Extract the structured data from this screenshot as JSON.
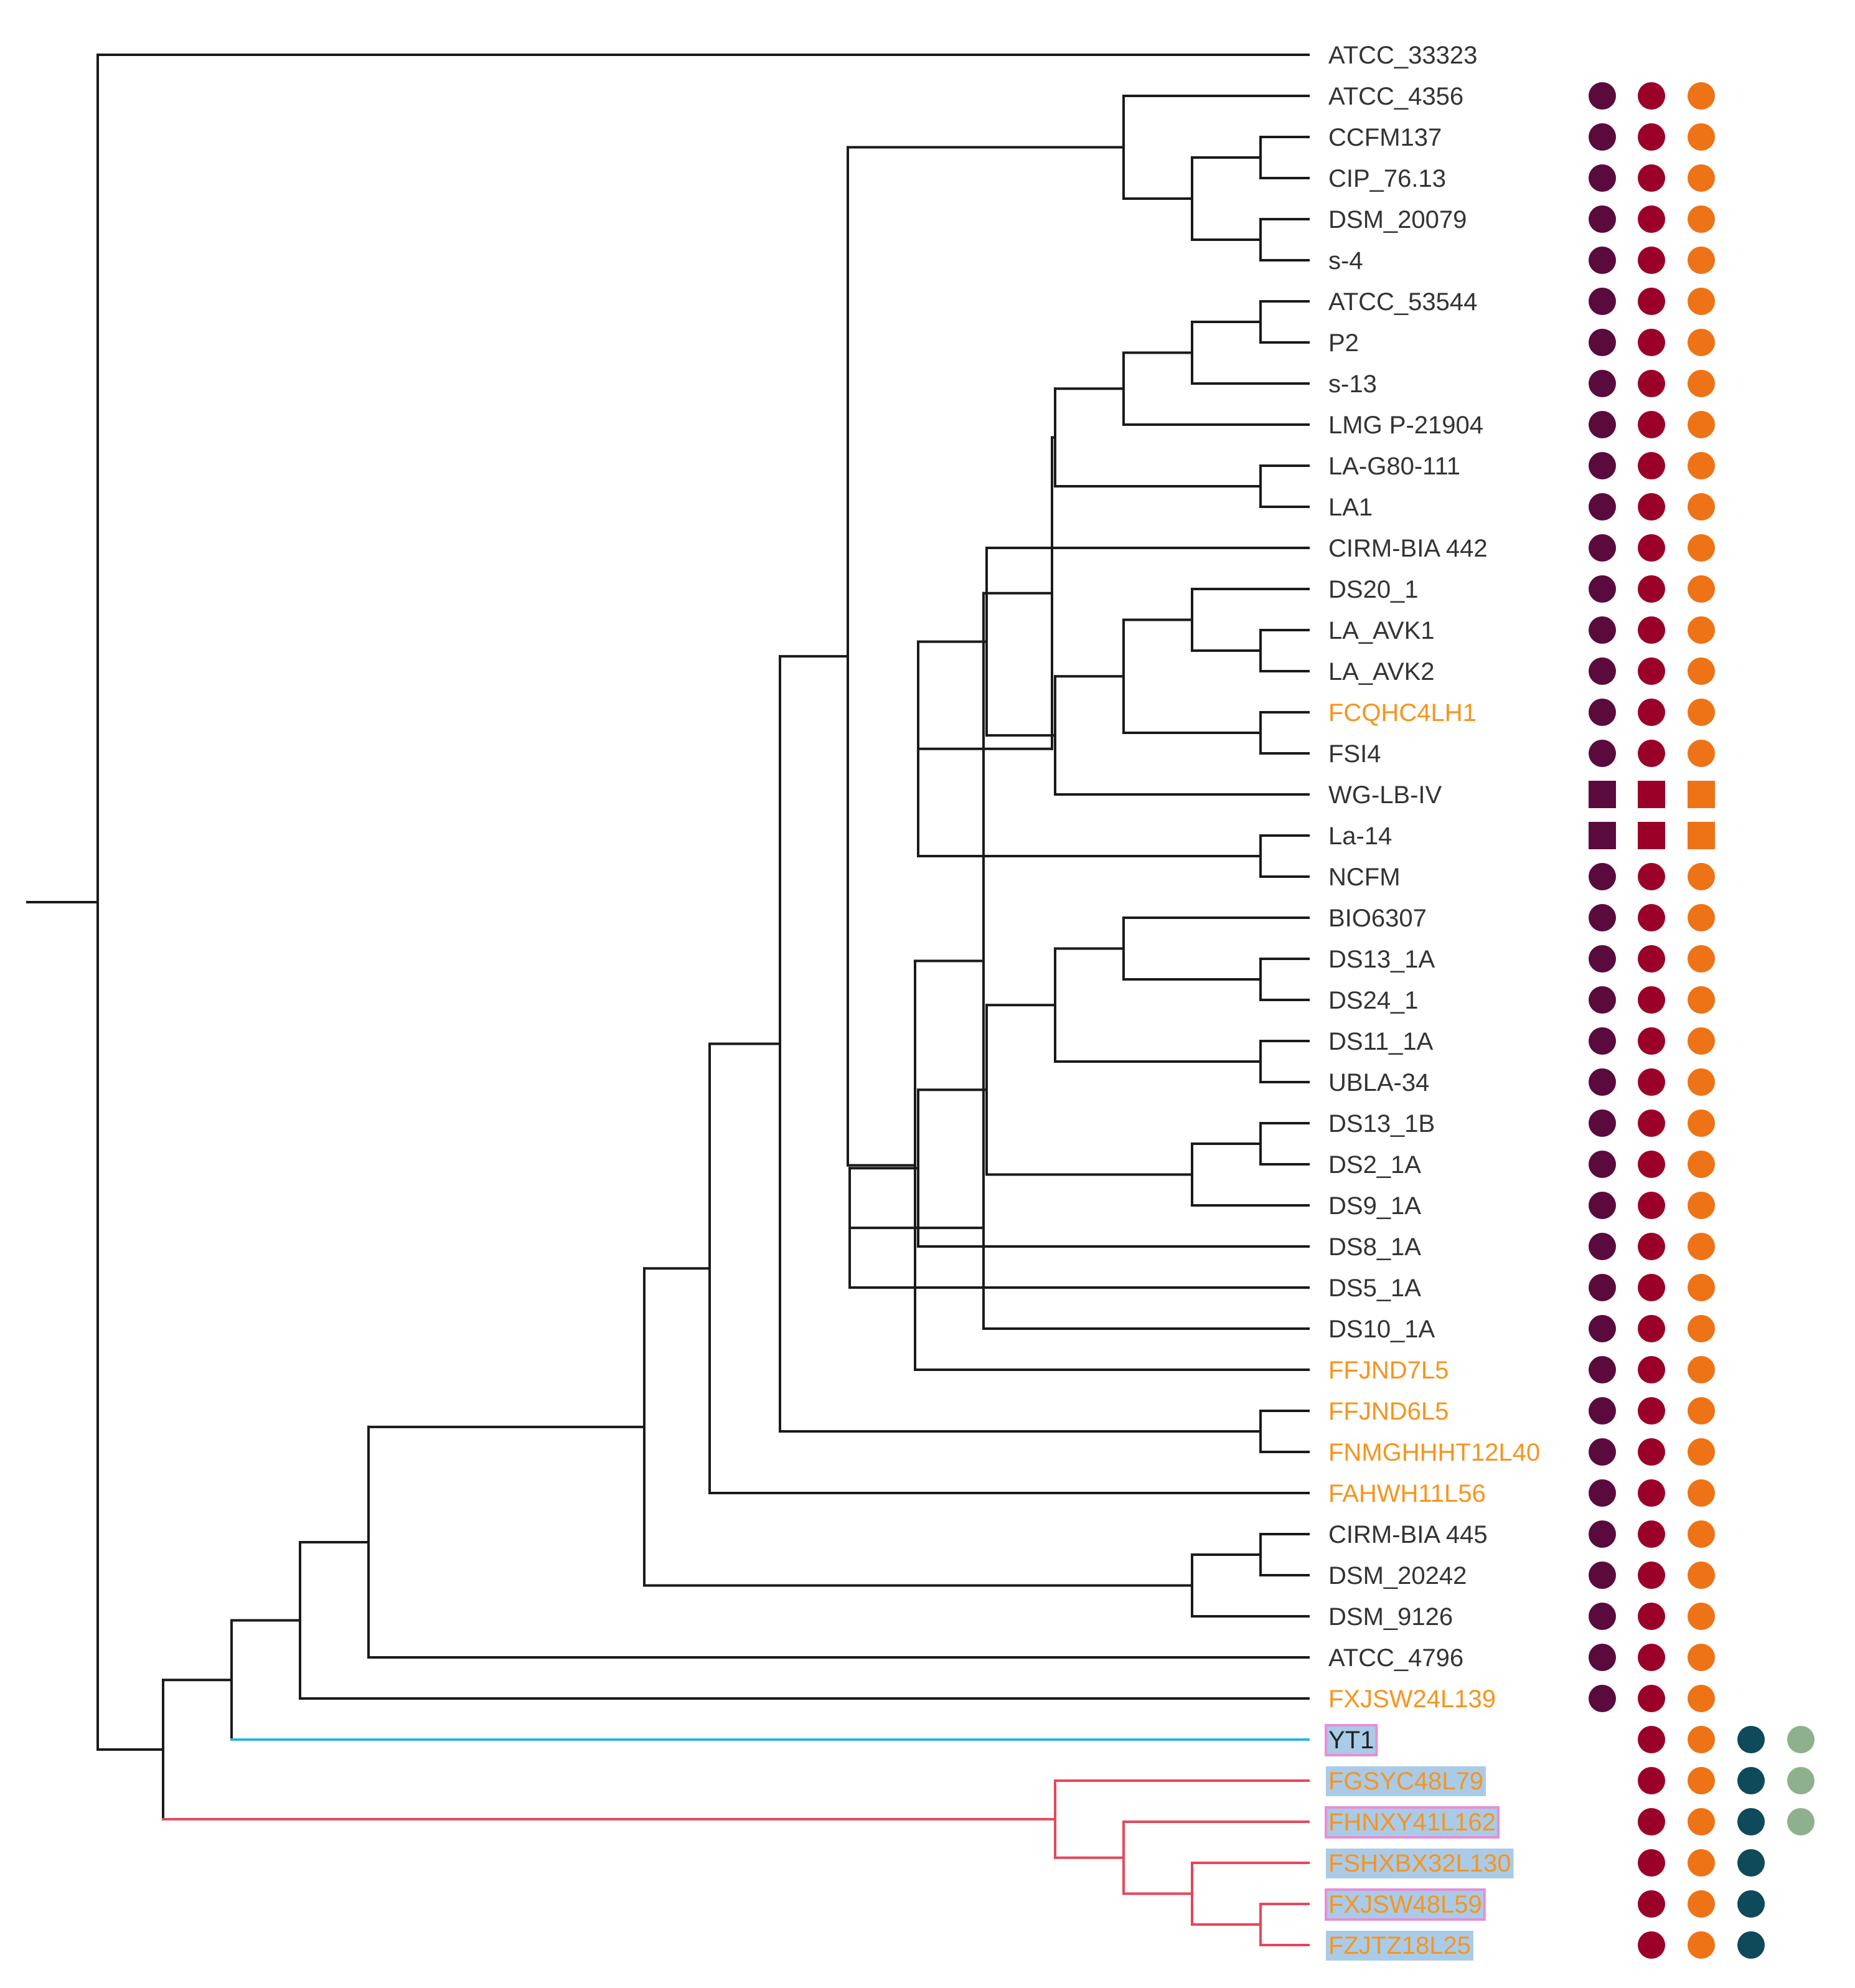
{
  "tree": {
    "colors": {
      "branch": "#1a1a1a",
      "branch_highlight_blue": "#2ab4e2",
      "branch_highlight_red": "#e8455a",
      "label_default": "#333333",
      "label_orange": "#f7941d",
      "label_box_fill": "#a9cbe8",
      "label_box_outline": "#e58fd6",
      "col1": "#5b0a3d",
      "col2": "#9b0029",
      "col3": "#ee7316",
      "col4": "#0e4a59",
      "col5": "#8fb08c"
    },
    "leaves": [
      {
        "label": "ATCC_33323",
        "style": "default",
        "markers": []
      },
      {
        "label": "ATCC_4356",
        "style": "default",
        "markers": [
          "col1:circle",
          "col2:circle",
          "col3:circle"
        ]
      },
      {
        "label": "CCFM137",
        "style": "default",
        "markers": [
          "col1:circle",
          "col2:circle",
          "col3:circle"
        ]
      },
      {
        "label": "CIP_76.13",
        "style": "default",
        "markers": [
          "col1:circle",
          "col2:circle",
          "col3:circle"
        ]
      },
      {
        "label": "DSM_20079",
        "style": "default",
        "markers": [
          "col1:circle",
          "col2:circle",
          "col3:circle"
        ]
      },
      {
        "label": "s-4",
        "style": "default",
        "markers": [
          "col1:circle",
          "col2:circle",
          "col3:circle"
        ]
      },
      {
        "label": "ATCC_53544",
        "style": "default",
        "markers": [
          "col1:circle",
          "col2:circle",
          "col3:circle"
        ]
      },
      {
        "label": "P2",
        "style": "default",
        "markers": [
          "col1:circle",
          "col2:circle",
          "col3:circle"
        ]
      },
      {
        "label": "s-13",
        "style": "default",
        "markers": [
          "col1:circle",
          "col2:circle",
          "col3:circle"
        ]
      },
      {
        "label": "LMG P-21904",
        "style": "default",
        "markers": [
          "col1:circle",
          "col2:circle",
          "col3:circle"
        ]
      },
      {
        "label": "LA-G80-111",
        "style": "default",
        "markers": [
          "col1:circle",
          "col2:circle",
          "col3:circle"
        ]
      },
      {
        "label": "LA1",
        "style": "default",
        "markers": [
          "col1:circle",
          "col2:circle",
          "col3:circle"
        ]
      },
      {
        "label": "CIRM-BIA 442",
        "style": "default",
        "markers": [
          "col1:circle",
          "col2:circle",
          "col3:circle"
        ]
      },
      {
        "label": "DS20_1",
        "style": "default",
        "markers": [
          "col1:circle",
          "col2:circle",
          "col3:circle"
        ]
      },
      {
        "label": "LA_AVK1",
        "style": "default",
        "markers": [
          "col1:circle",
          "col2:circle",
          "col3:circle"
        ]
      },
      {
        "label": "LA_AVK2",
        "style": "default",
        "markers": [
          "col1:circle",
          "col2:circle",
          "col3:circle"
        ]
      },
      {
        "label": "FCQHC4LH1",
        "style": "orange",
        "markers": [
          "col1:circle",
          "col2:circle",
          "col3:circle"
        ]
      },
      {
        "label": "FSI4",
        "style": "default",
        "markers": [
          "col1:circle",
          "col2:circle",
          "col3:circle"
        ]
      },
      {
        "label": "WG-LB-IV",
        "style": "default",
        "markers": [
          "col1:square",
          "col2:square",
          "col3:square"
        ]
      },
      {
        "label": "La-14",
        "style": "default",
        "markers": [
          "col1:square",
          "col2:square",
          "col3:square"
        ]
      },
      {
        "label": "NCFM",
        "style": "default",
        "markers": [
          "col1:circle",
          "col2:circle",
          "col3:circle"
        ]
      },
      {
        "label": "BIO6307",
        "style": "default",
        "markers": [
          "col1:circle",
          "col2:circle",
          "col3:circle"
        ]
      },
      {
        "label": "DS13_1A",
        "style": "default",
        "markers": [
          "col1:circle",
          "col2:circle",
          "col3:circle"
        ]
      },
      {
        "label": "DS24_1",
        "style": "default",
        "markers": [
          "col1:circle",
          "col2:circle",
          "col3:circle"
        ]
      },
      {
        "label": "DS11_1A",
        "style": "default",
        "markers": [
          "col1:circle",
          "col2:circle",
          "col3:circle"
        ]
      },
      {
        "label": "UBLA-34",
        "style": "default",
        "markers": [
          "col1:circle",
          "col2:circle",
          "col3:circle"
        ]
      },
      {
        "label": "DS13_1B",
        "style": "default",
        "markers": [
          "col1:circle",
          "col2:circle",
          "col3:circle"
        ]
      },
      {
        "label": "DS2_1A",
        "style": "default",
        "markers": [
          "col1:circle",
          "col2:circle",
          "col3:circle"
        ]
      },
      {
        "label": "DS9_1A",
        "style": "default",
        "markers": [
          "col1:circle",
          "col2:circle",
          "col3:circle"
        ]
      },
      {
        "label": "DS8_1A",
        "style": "default",
        "markers": [
          "col1:circle",
          "col2:circle",
          "col3:circle"
        ]
      },
      {
        "label": "DS5_1A",
        "style": "default",
        "markers": [
          "col1:circle",
          "col2:circle",
          "col3:circle"
        ]
      },
      {
        "label": "DS10_1A",
        "style": "default",
        "markers": [
          "col1:circle",
          "col2:circle",
          "col3:circle"
        ]
      },
      {
        "label": "FFJND7L5",
        "style": "orange",
        "markers": [
          "col1:circle",
          "col2:circle",
          "col3:circle"
        ]
      },
      {
        "label": "FFJND6L5",
        "style": "orange",
        "markers": [
          "col1:circle",
          "col2:circle",
          "col3:circle"
        ]
      },
      {
        "label": "FNMGHHHT12L40",
        "style": "orange",
        "markers": [
          "col1:circle",
          "col2:circle",
          "col3:circle"
        ]
      },
      {
        "label": "FAHWH11L56",
        "style": "orange",
        "markers": [
          "col1:circle",
          "col2:circle",
          "col3:circle"
        ]
      },
      {
        "label": "CIRM-BIA 445",
        "style": "default",
        "markers": [
          "col1:circle",
          "col2:circle",
          "col3:circle"
        ]
      },
      {
        "label": "DSM_20242",
        "style": "default",
        "markers": [
          "col1:circle",
          "col2:circle",
          "col3:circle"
        ]
      },
      {
        "label": "DSM_9126",
        "style": "default",
        "markers": [
          "col1:circle",
          "col2:circle",
          "col3:circle"
        ]
      },
      {
        "label": "ATCC_4796",
        "style": "default",
        "markers": [
          "col1:circle",
          "col2:circle",
          "col3:circle"
        ]
      },
      {
        "label": "FXJSW24L139",
        "style": "orange",
        "markers": [
          "col1:circle",
          "col2:circle",
          "col3:circle"
        ]
      },
      {
        "label": "YT1",
        "style": "boxed-dark",
        "markers": [
          "col2:circle",
          "col3:circle",
          "col4:circle",
          "col5:circle"
        ]
      },
      {
        "label": "FGSYC48L79",
        "style": "boxed-orange",
        "markers": [
          "col2:circle",
          "col3:circle",
          "col4:circle",
          "col5:circle"
        ]
      },
      {
        "label": "FHNXY41L162",
        "style": "outlined-orange",
        "markers": [
          "col2:circle",
          "col3:circle",
          "col4:circle",
          "col5:circle"
        ]
      },
      {
        "label": "FSHXBX32L130",
        "style": "boxed-orange",
        "markers": [
          "col2:circle",
          "col3:circle",
          "col4:circle"
        ]
      },
      {
        "label": "FXJSW48L59",
        "style": "outlined-orange",
        "markers": [
          "col2:circle",
          "col3:circle",
          "col4:circle"
        ]
      },
      {
        "label": "FZJTZ18L25",
        "style": "boxed-orange",
        "markers": [
          "col2:circle",
          "col3:circle",
          "col4:circle"
        ]
      }
    ]
  }
}
